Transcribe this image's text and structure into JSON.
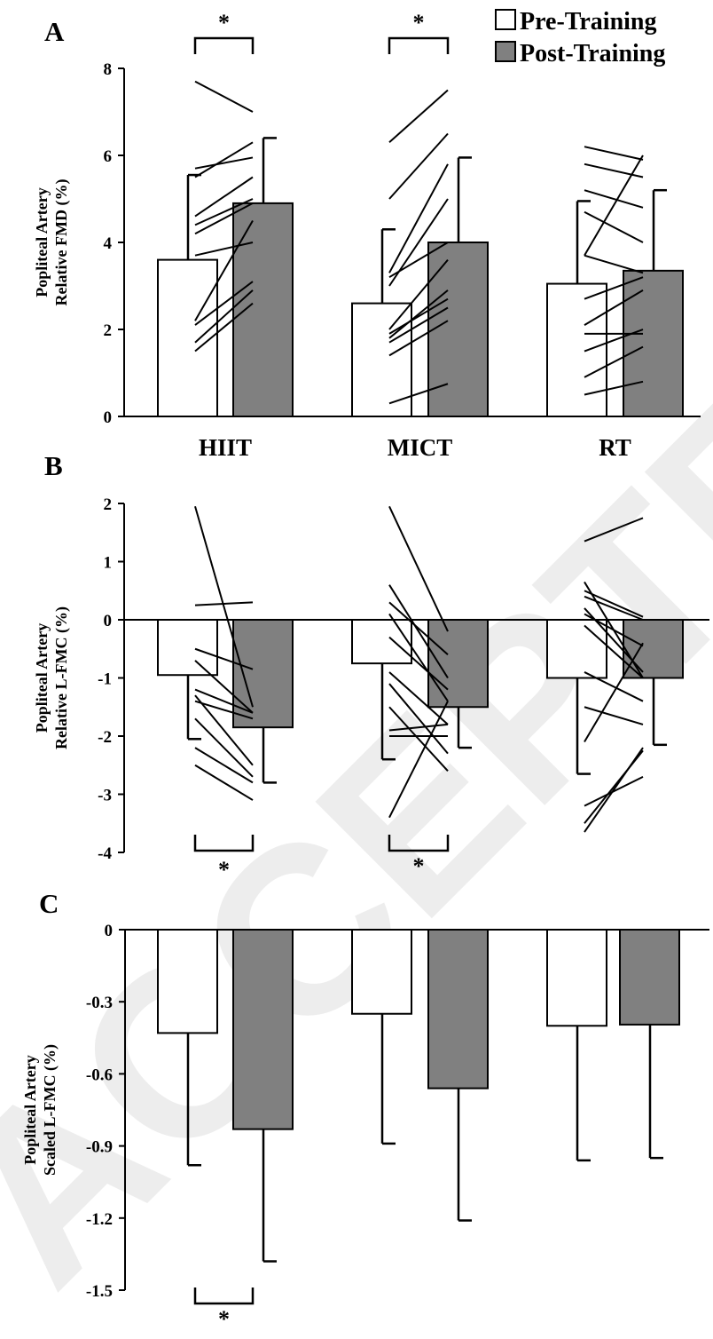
{
  "watermark": "ACCEPTED",
  "legend": [
    {
      "label": "Pre-Training",
      "color": "#ffffff"
    },
    {
      "label": "Post-Training",
      "color": "#808080"
    }
  ],
  "chart_data": [
    {
      "type": "bar",
      "panel": "A",
      "ylabel_lines": [
        "Popliteal Artery",
        "Relative FMD (%)"
      ],
      "categories": [
        "HIIT",
        "MICT",
        "RT"
      ],
      "ylim": [
        0,
        8
      ],
      "yticks": [
        "0",
        "2",
        "4",
        "6",
        "8"
      ],
      "series": [
        {
          "name": "Pre-Training",
          "color": "#ffffff",
          "values": [
            3.6,
            2.6,
            3.05
          ],
          "errors": [
            1.95,
            1.7,
            1.9
          ]
        },
        {
          "name": "Post-Training",
          "color": "#808080",
          "values": [
            4.9,
            4.0,
            3.35
          ],
          "errors": [
            1.5,
            1.95,
            1.85
          ]
        }
      ],
      "individual_lines": [
        [
          [
            7.7,
            7.0
          ],
          [
            5.7,
            5.95
          ],
          [
            5.5,
            6.3
          ],
          [
            4.6,
            5.5
          ],
          [
            4.4,
            5.0
          ],
          [
            4.2,
            4.9
          ],
          [
            3.7,
            4.0
          ],
          [
            2.2,
            4.5
          ],
          [
            2.1,
            3.1
          ],
          [
            1.7,
            2.9
          ],
          [
            1.5,
            2.6
          ]
        ],
        [
          [
            6.3,
            7.5
          ],
          [
            5.0,
            6.5
          ],
          [
            3.3,
            5.8
          ],
          [
            3.2,
            4.0
          ],
          [
            3.0,
            5.0
          ],
          [
            2.0,
            3.6
          ],
          [
            1.9,
            2.7
          ],
          [
            1.8,
            2.9
          ],
          [
            1.7,
            2.5
          ],
          [
            1.4,
            2.2
          ],
          [
            0.3,
            0.75
          ]
        ],
        [
          [
            6.2,
            5.9
          ],
          [
            5.8,
            5.5
          ],
          [
            5.2,
            4.8
          ],
          [
            4.7,
            4.0
          ],
          [
            3.7,
            6.0
          ],
          [
            3.7,
            3.3
          ],
          [
            2.7,
            3.2
          ],
          [
            2.1,
            2.9
          ],
          [
            1.9,
            1.9
          ],
          [
            1.5,
            2.0
          ],
          [
            0.9,
            1.6
          ],
          [
            0.5,
            0.8
          ]
        ]
      ],
      "significance": [
        {
          "category": "HIIT",
          "label": "*"
        },
        {
          "category": "MICT",
          "label": "*"
        }
      ]
    },
    {
      "type": "bar",
      "panel": "B",
      "ylabel_lines": [
        "Popliteal Artery",
        "Relative L-FMC (%)"
      ],
      "categories": [
        "HIIT",
        "MICT",
        "RT"
      ],
      "ylim": [
        -4,
        2
      ],
      "yticks": [
        "-4",
        "-3",
        "-2",
        "-1",
        "0",
        "1",
        "2"
      ],
      "series": [
        {
          "name": "Pre-Training",
          "color": "#ffffff",
          "values": [
            -0.95,
            -0.75,
            -1.0
          ],
          "errors": [
            1.1,
            1.65,
            1.65
          ]
        },
        {
          "name": "Post-Training",
          "color": "#808080",
          "values": [
            -1.85,
            -1.5,
            -1.0
          ],
          "errors": [
            0.95,
            0.7,
            1.15
          ]
        }
      ],
      "individual_lines": [
        [
          [
            1.95,
            -1.5
          ],
          [
            0.25,
            0.3
          ],
          [
            -0.5,
            -0.85
          ],
          [
            -0.7,
            -1.6
          ],
          [
            -1.2,
            -1.6
          ],
          [
            -1.3,
            -2.5
          ],
          [
            -1.4,
            -1.7
          ],
          [
            -1.7,
            -2.7
          ],
          [
            -2.2,
            -2.8
          ],
          [
            -2.5,
            -3.1
          ]
        ],
        [
          [
            1.95,
            -0.2
          ],
          [
            0.6,
            -1.0
          ],
          [
            0.3,
            -0.6
          ],
          [
            0.1,
            -1.4
          ],
          [
            -0.3,
            -1.2
          ],
          [
            -0.9,
            -1.8
          ],
          [
            -1.1,
            -2.3
          ],
          [
            -1.5,
            -2.6
          ],
          [
            -1.9,
            -1.8
          ],
          [
            -2.0,
            -2.0
          ],
          [
            -3.4,
            -1.4
          ]
        ],
        [
          [
            1.35,
            1.75
          ],
          [
            0.65,
            -1.0
          ],
          [
            0.5,
            0.05
          ],
          [
            0.4,
            0.0
          ],
          [
            0.2,
            -0.9
          ],
          [
            0.1,
            -0.45
          ],
          [
            -0.1,
            -1.0
          ],
          [
            -0.9,
            -1.4
          ],
          [
            -1.5,
            -1.8
          ],
          [
            -2.1,
            -0.4
          ],
          [
            -3.2,
            -2.7
          ],
          [
            -3.5,
            -2.25
          ],
          [
            -3.65,
            -2.2
          ]
        ]
      ],
      "significance": [
        {
          "category": "HIIT",
          "label": "*"
        },
        {
          "category": "MICT",
          "label": "*"
        }
      ]
    },
    {
      "type": "bar",
      "panel": "C",
      "ylabel_lines": [
        "Popliteal Artery",
        "Scaled L-FMC (%)"
      ],
      "categories": [
        "HIIT",
        "MICT",
        "RT"
      ],
      "ylim": [
        -1.5,
        0
      ],
      "yticks": [
        "-1.5",
        "-1.2",
        "-0.9",
        "-0.6",
        "-0.3",
        "0"
      ],
      "series": [
        {
          "name": "Pre-Training",
          "color": "#ffffff",
          "values": [
            -0.43,
            -0.35,
            -0.4
          ],
          "errors": [
            0.55,
            0.54,
            0.56
          ]
        },
        {
          "name": "Post-Training",
          "color": "#808080",
          "values": [
            -0.83,
            -0.66,
            -0.395
          ],
          "errors": [
            0.55,
            0.55,
            0.555
          ]
        }
      ],
      "significance": [
        {
          "category": "HIIT",
          "label": "*"
        }
      ]
    }
  ]
}
